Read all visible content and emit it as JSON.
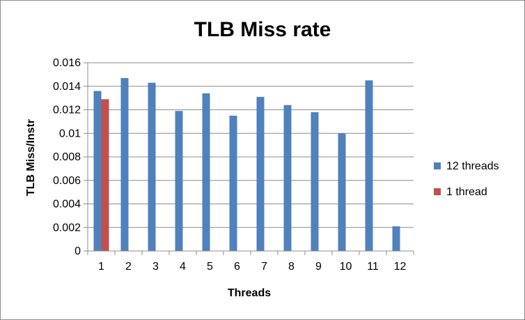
{
  "chart_data": {
    "type": "bar",
    "title": "TLB Miss rate",
    "xlabel": "Threads",
    "ylabel": "TLB Miss/Instr",
    "categories": [
      "1",
      "2",
      "3",
      "4",
      "5",
      "6",
      "7",
      "8",
      "9",
      "10",
      "11",
      "12"
    ],
    "ylim": [
      0,
      0.016
    ],
    "yticks": [
      "0",
      "0.002",
      "0.004",
      "0.006",
      "0.008",
      "0.01",
      "0.012",
      "0.014",
      "0.016"
    ],
    "grid": true,
    "legend_position": "right",
    "series": [
      {
        "name": "12 threads",
        "color": "#4f81bd",
        "values": [
          0.0136,
          0.0147,
          0.0143,
          0.0119,
          0.0134,
          0.0115,
          0.0131,
          0.0124,
          0.0118,
          0.01,
          0.0145,
          0.0021
        ]
      },
      {
        "name": "1 thread",
        "color": "#c0504d",
        "values": [
          0.0129,
          null,
          null,
          null,
          null,
          null,
          null,
          null,
          null,
          null,
          null,
          null
        ]
      }
    ]
  }
}
